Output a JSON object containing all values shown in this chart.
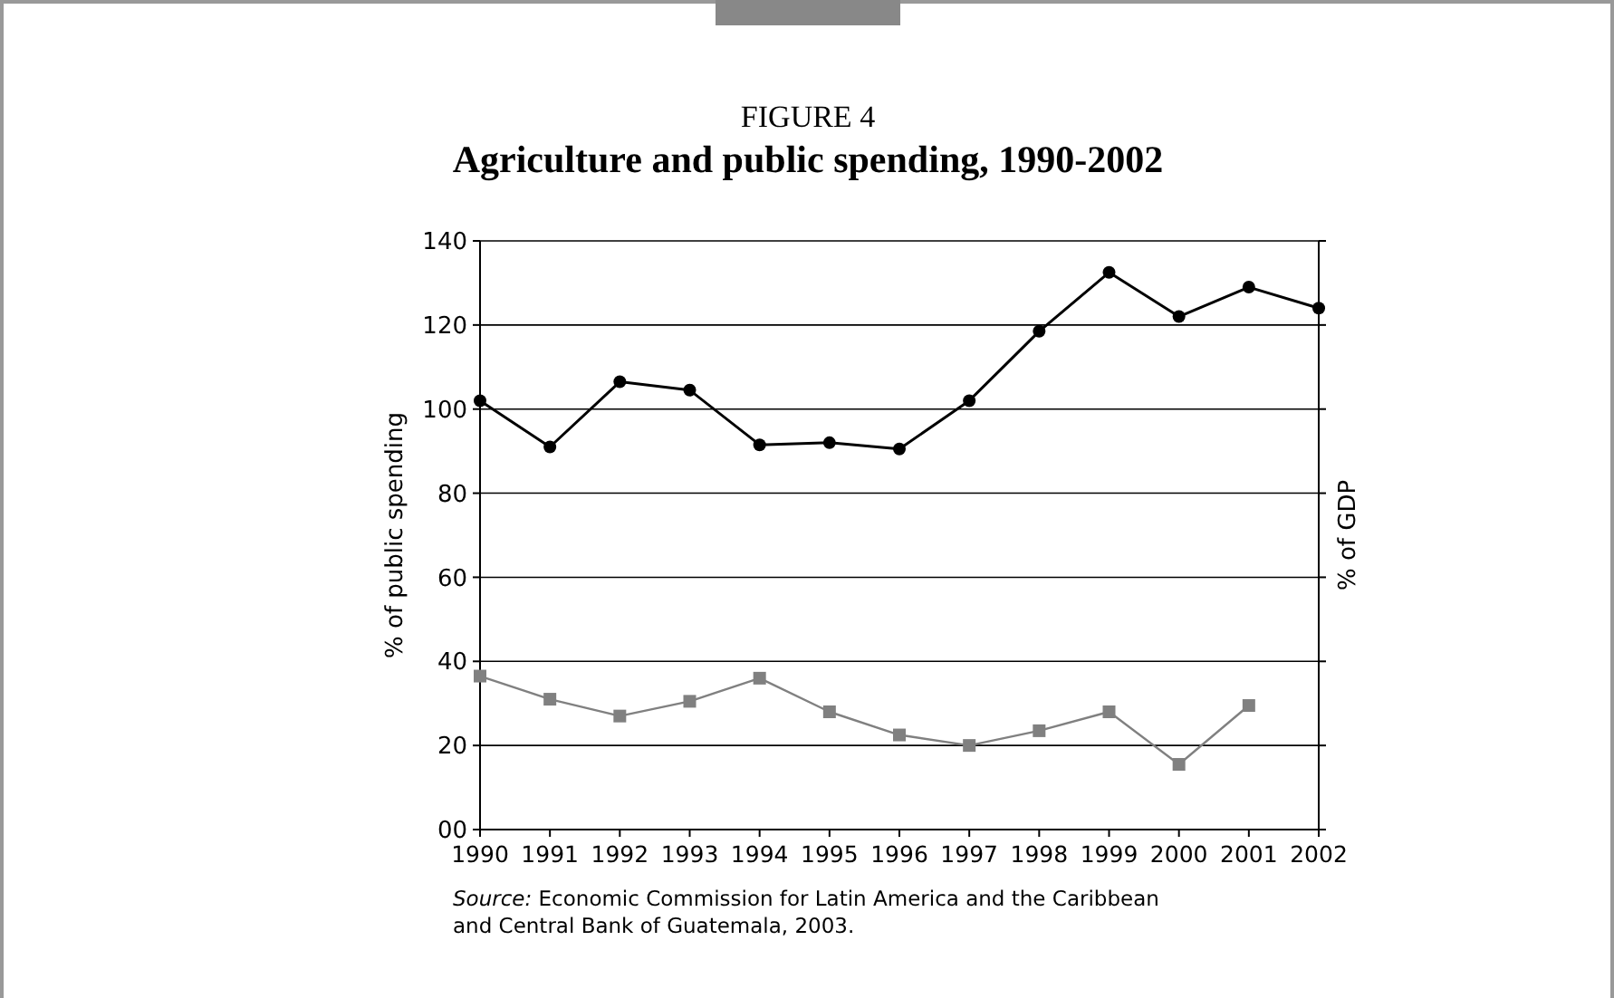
{
  "chart_data": {
    "type": "line",
    "title": "FIGURE 4",
    "subtitle": "Agriculture and public spending, 1990-2002",
    "ylabel": "% of public spending",
    "y2label": "% of GDP",
    "categories": [
      "1990",
      "1991",
      "1992",
      "1993",
      "1994",
      "1995",
      "1996",
      "1997",
      "1998",
      "1999",
      "2000",
      "2001",
      "2002"
    ],
    "series": [
      {
        "color": "#000000",
        "marker": "circle",
        "values": [
          102,
          91,
          106.5,
          104.5,
          91.5,
          92,
          90.5,
          102,
          118.5,
          132.5,
          122,
          129,
          124
        ]
      },
      {
        "color": "#808080",
        "marker": "square",
        "values": [
          36.5,
          31,
          27,
          30.5,
          36,
          28,
          22.5,
          20,
          23.5,
          28,
          15.5,
          29.5,
          null
        ]
      }
    ],
    "ylim": [
      0,
      140
    ],
    "yticks": [
      {
        "value": 0,
        "label": "00"
      },
      20,
      40,
      60,
      80,
      100,
      120,
      140
    ],
    "grid": "y",
    "annotations": [
      "Source: Economic Commission for Latin America and the Caribbean and Central Bank of Guatemala, 2003."
    ]
  }
}
